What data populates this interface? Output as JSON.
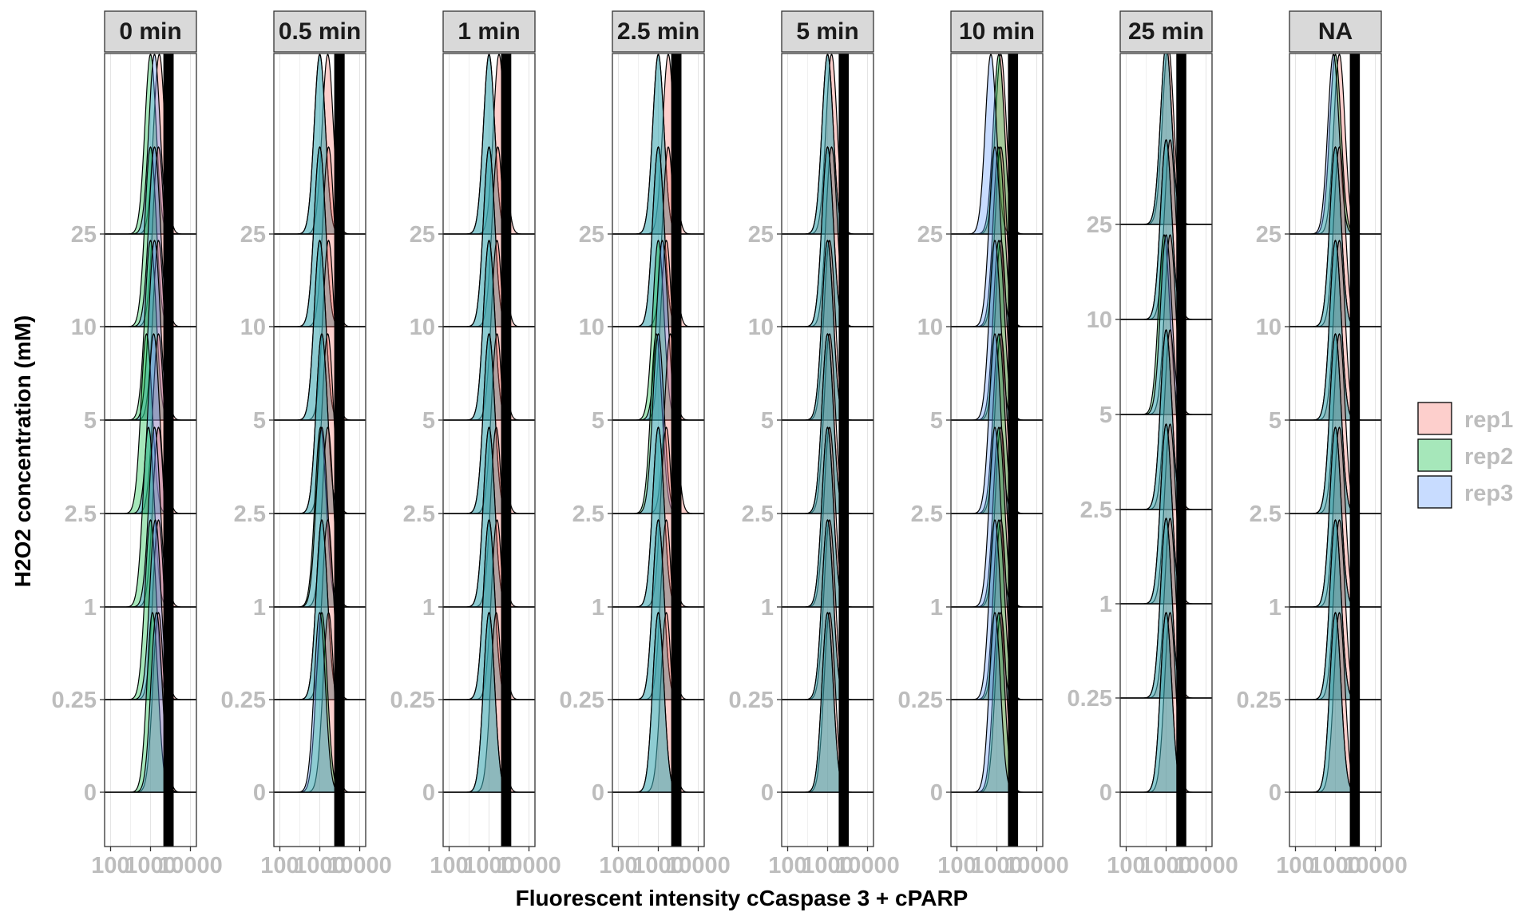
{
  "chart_data": {
    "type": "ridgeline",
    "xlabel": "Fluorescent intensity cCaspase 3 + cPARP",
    "ylabel": "H2O2 concentration (mM)",
    "x_scale": "log10",
    "x_ticks": [
      "100",
      "1000",
      "10000"
    ],
    "y_categories": [
      "0",
      "0.25",
      "1",
      "2.5",
      "5",
      "10",
      "25"
    ],
    "grid": true,
    "legend_position": "right",
    "series": [
      {
        "name": "rep1",
        "color": "#F8766D"
      },
      {
        "name": "rep2",
        "color": "#00BA38"
      },
      {
        "name": "rep3",
        "color": "#619CFF"
      }
    ],
    "panels": [
      {
        "label": "0 min",
        "threshold_band": [
          2100,
          3800
        ]
      },
      {
        "label": "0.5 min",
        "threshold_band": [
          2300,
          4200
        ]
      },
      {
        "label": "1 min",
        "threshold_band": [
          2000,
          3600
        ]
      },
      {
        "label": "2.5 min",
        "threshold_band": [
          2100,
          3800
        ]
      },
      {
        "label": "5 min",
        "threshold_band": [
          1900,
          3400
        ]
      },
      {
        "label": "10 min",
        "threshold_band": [
          1900,
          3400
        ]
      },
      {
        "label": "25 min",
        "threshold_band": [
          1800,
          3200
        ]
      },
      {
        "label": "NA",
        "threshold_band": [
          2300,
          4100
        ]
      }
    ],
    "peak_log_intensity": {
      "0 min": {
        "rep1": [
          3.2,
          3.2,
          3.2,
          3.2,
          3.2,
          3.2,
          3.22
        ],
        "rep2": [
          3.05,
          3.0,
          2.95,
          2.9,
          3.0,
          3.0,
          3.0
        ],
        "rep3": [
          3.15,
          3.12,
          3.1,
          3.08,
          3.1,
          3.1,
          3.1
        ]
      },
      "0.5 min": {
        "rep1": [
          3.22,
          3.2,
          3.2,
          3.2,
          3.22,
          3.22,
          3.2
        ],
        "rep2": [
          3.05,
          3.05,
          3.02,
          3.05,
          3.0,
          3.0,
          3.0
        ],
        "rep3": [
          3.0,
          3.05,
          3.05,
          3.05,
          3.0,
          3.0,
          3.0
        ]
      },
      "1 min": {
        "rep1": [
          3.18,
          3.2,
          3.18,
          3.2,
          3.2,
          3.22,
          3.25
        ],
        "rep2": [
          3.0,
          3.0,
          3.0,
          3.0,
          3.0,
          3.0,
          3.0
        ],
        "rep3": [
          3.0,
          3.0,
          3.0,
          3.0,
          3.0,
          3.0,
          3.0
        ]
      },
      "2.5 min": {
        "rep1": [
          3.2,
          3.2,
          3.2,
          3.3,
          3.2,
          3.25,
          3.25
        ],
        "rep2": [
          3.0,
          3.0,
          3.0,
          2.95,
          3.0,
          3.0,
          3.0
        ],
        "rep3": [
          3.0,
          3.0,
          3.0,
          3.0,
          3.1,
          3.0,
          3.0
        ]
      },
      "5 min": {
        "rep1": [
          3.05,
          3.05,
          3.05,
          3.05,
          3.05,
          3.1,
          3.1
        ],
        "rep2": [
          3.0,
          3.0,
          3.0,
          3.0,
          3.0,
          3.0,
          3.0
        ],
        "rep3": [
          3.0,
          3.0,
          3.0,
          3.0,
          3.0,
          3.0,
          3.0
        ]
      },
      "10 min": {
        "rep1": [
          3.1,
          3.1,
          3.1,
          3.1,
          3.1,
          3.1,
          3.1
        ],
        "rep2": [
          3.05,
          3.05,
          3.05,
          3.05,
          3.05,
          3.05,
          3.05
        ],
        "rep3": [
          2.95,
          2.95,
          2.95,
          2.95,
          2.95,
          2.95,
          2.85
        ]
      },
      "25 min": {
        "rep1": [
          3.1,
          3.1,
          3.1,
          3.1,
          3.1,
          3.1,
          3.05
        ],
        "rep2": [
          3.0,
          3.0,
          3.0,
          3.0,
          2.95,
          3.0,
          3.0
        ],
        "rep3": [
          3.0,
          3.0,
          3.0,
          3.0,
          3.0,
          3.0,
          3.0
        ]
      },
      "NA": {
        "rep1": [
          3.1,
          3.1,
          3.1,
          3.1,
          3.1,
          3.1,
          3.1
        ],
        "rep2": [
          3.0,
          3.0,
          3.0,
          3.0,
          3.0,
          3.0,
          3.0
        ],
        "rep3": [
          3.0,
          3.0,
          3.0,
          3.0,
          3.0,
          3.0,
          2.95
        ]
      }
    }
  }
}
